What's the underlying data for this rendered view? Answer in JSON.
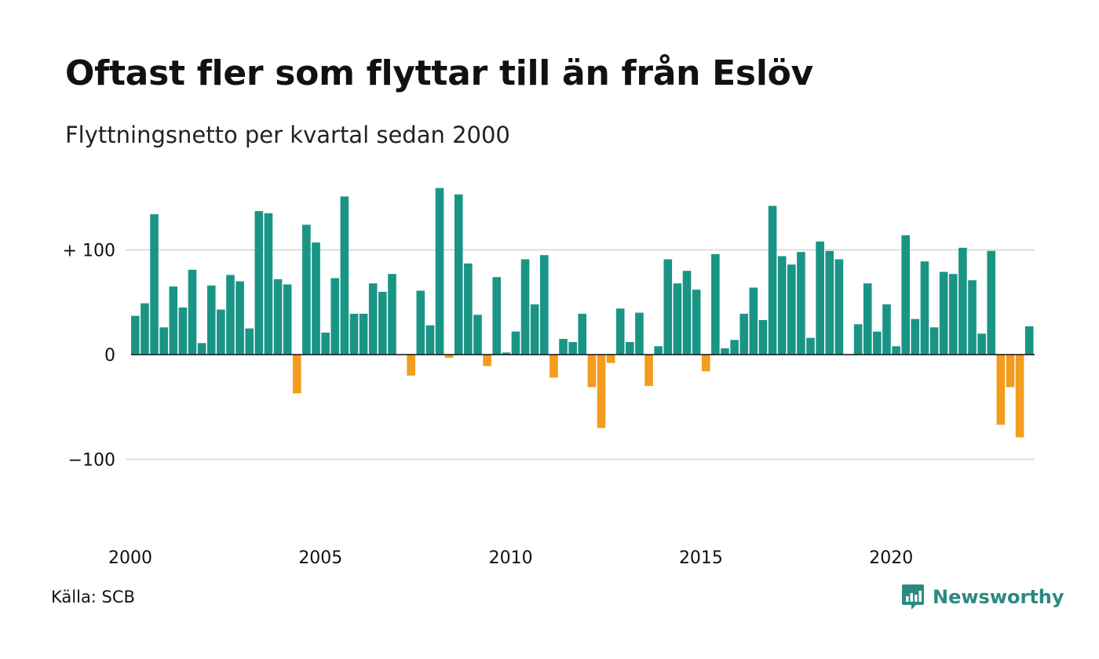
{
  "header": {
    "title": "Oftast fler som flyttar till än från Eslöv",
    "subtitle": "Flyttningsnetto per kvartal sedan 2000"
  },
  "footer": {
    "source": "Källa: SCB",
    "brand": "Newsworthy",
    "brand_icon": "newsworthy-logo-icon"
  },
  "colors": {
    "positive": "#1a9585",
    "negative": "#f39c1e",
    "grid": "#dddddd",
    "zero_line": "#111111",
    "brand": "#2a8a80"
  },
  "chart_data": {
    "type": "bar",
    "title": "Oftast fler som flyttar till än från Eslöv",
    "subtitle": "Flyttningsnetto per kvartal sedan 2000",
    "xlabel": "",
    "ylabel": "",
    "x_tick_labels": [
      "2000",
      "2005",
      "2010",
      "2015",
      "2020"
    ],
    "y_ticks": [
      {
        "value": 100,
        "label": "+ 100"
      },
      {
        "value": 0,
        "label": "0"
      },
      {
        "value": -100,
        "label": "−100"
      }
    ],
    "ylim": [
      -170,
      165
    ],
    "grid": true,
    "series": [
      {
        "values": [
          37,
          49,
          134,
          26,
          65,
          45,
          81,
          11,
          66,
          43,
          76,
          70,
          25,
          137,
          135,
          72,
          67,
          -37,
          124,
          107,
          21,
          73,
          151,
          39,
          39,
          68,
          60,
          77,
          0,
          -20,
          61,
          28,
          159,
          -3,
          153,
          87,
          38,
          -11,
          74,
          2,
          22,
          91,
          48,
          95,
          -22,
          15,
          12,
          39,
          -31,
          -70,
          -8,
          44,
          12,
          40,
          -30,
          8,
          91,
          68,
          80,
          62,
          -16,
          96,
          6,
          14,
          39,
          64,
          33,
          142,
          94,
          86,
          98,
          16,
          108,
          99,
          91,
          0,
          29,
          68,
          22,
          48,
          8,
          114,
          34,
          89,
          26,
          79,
          77,
          102,
          71,
          20,
          99,
          -67,
          -31,
          -79,
          27
        ]
      }
    ]
  }
}
